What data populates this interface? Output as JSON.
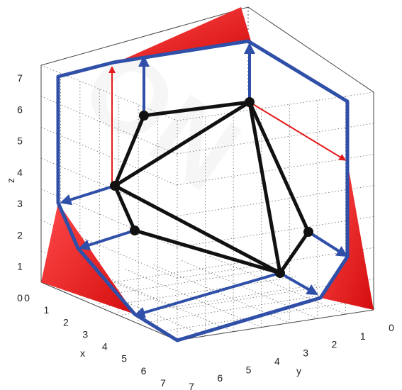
{
  "axes": {
    "x": {
      "label": "x",
      "ticks": [
        "0",
        "1",
        "2",
        "3",
        "4",
        "5",
        "6",
        "7"
      ]
    },
    "y": {
      "label": "y",
      "ticks": [
        "0",
        "1",
        "2",
        "3",
        "4",
        "5",
        "6",
        "7"
      ]
    },
    "z": {
      "label": "z",
      "ticks": [
        "0",
        "1",
        "2",
        "3",
        "4",
        "5",
        "6",
        "7"
      ]
    }
  },
  "watermark": "ON",
  "colors": {
    "polytope": "#111111",
    "outline": "#2f4fa8",
    "arrows_red": "#e31b1b",
    "shadow_red": "#e11a1a",
    "grid": "#666666",
    "box": "#444444"
  }
}
